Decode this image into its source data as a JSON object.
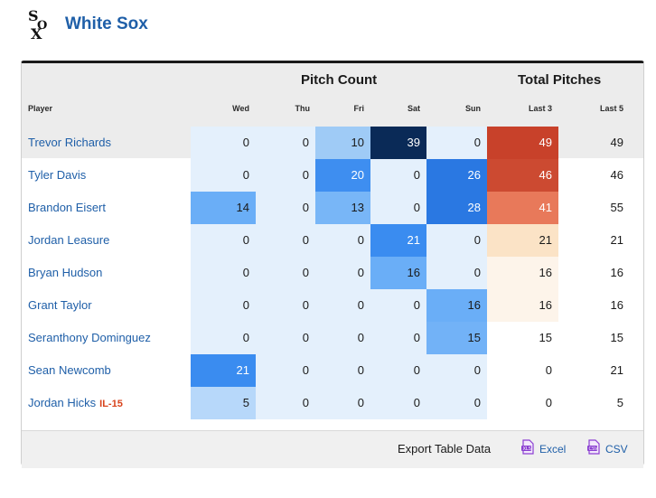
{
  "team": {
    "name": "White Sox",
    "logo_icon": "white-sox-logo-icon"
  },
  "table": {
    "group_headers": {
      "pitch_count": "Pitch Count",
      "total_pitches": "Total Pitches"
    },
    "columns": [
      "Player",
      "Wed",
      "Thu",
      "Fri",
      "Sat",
      "Sun",
      "Last 3",
      "Last 5"
    ],
    "rows": [
      {
        "player": "Trevor Richards",
        "badge": "",
        "values": [
          "0",
          "0",
          "10",
          "39",
          "0"
        ],
        "last3": "49",
        "last5": "49",
        "day_colors": [
          "#e4f0fc",
          "#e4f0fc",
          "#9fcbf6",
          "#0a2a57",
          "#e4f0fc"
        ],
        "day_text": [
          "#1a1a1a",
          "#1a1a1a",
          "#1a1a1a",
          "#ffffff",
          "#1a1a1a"
        ],
        "last3_color": "#c8412a",
        "last3_text": "#ffffff"
      },
      {
        "player": "Tyler Davis",
        "badge": "",
        "values": [
          "0",
          "0",
          "20",
          "0",
          "26"
        ],
        "last3": "46",
        "last5": "46",
        "day_colors": [
          "#e4f0fc",
          "#e4f0fc",
          "#3e8ef0",
          "#e4f0fc",
          "#2a78e2"
        ],
        "day_text": [
          "#1a1a1a",
          "#1a1a1a",
          "#ffffff",
          "#1a1a1a",
          "#ffffff"
        ],
        "last3_color": "#cc4a31",
        "last3_text": "#ffffff"
      },
      {
        "player": "Brandon Eisert",
        "badge": "",
        "values": [
          "14",
          "0",
          "13",
          "0",
          "28"
        ],
        "last3": "41",
        "last5": "55",
        "day_colors": [
          "#6aaef7",
          "#e4f0fc",
          "#78b6f7",
          "#e4f0fc",
          "#2a78e2"
        ],
        "day_text": [
          "#1a1a1a",
          "#1a1a1a",
          "#1a1a1a",
          "#1a1a1a",
          "#ffffff"
        ],
        "last3_color": "#e8795a",
        "last3_text": "#ffffff"
      },
      {
        "player": "Jordan Leasure",
        "badge": "",
        "values": [
          "0",
          "0",
          "0",
          "21",
          "0"
        ],
        "last3": "21",
        "last5": "21",
        "day_colors": [
          "#e4f0fc",
          "#e4f0fc",
          "#e4f0fc",
          "#3a8cf0",
          "#e4f0fc"
        ],
        "day_text": [
          "#1a1a1a",
          "#1a1a1a",
          "#1a1a1a",
          "#ffffff",
          "#1a1a1a"
        ],
        "last3_color": "#fbe3c6",
        "last3_text": "#1a1a1a"
      },
      {
        "player": "Bryan Hudson",
        "badge": "",
        "values": [
          "0",
          "0",
          "0",
          "16",
          "0"
        ],
        "last3": "16",
        "last5": "16",
        "day_colors": [
          "#e4f0fc",
          "#e4f0fc",
          "#e4f0fc",
          "#6aaef7",
          "#e4f0fc"
        ],
        "day_text": [
          "#1a1a1a",
          "#1a1a1a",
          "#1a1a1a",
          "#1a1a1a",
          "#1a1a1a"
        ],
        "last3_color": "#fdf4ea",
        "last3_text": "#1a1a1a"
      },
      {
        "player": "Grant Taylor",
        "badge": "",
        "values": [
          "0",
          "0",
          "0",
          "0",
          "16"
        ],
        "last3": "16",
        "last5": "16",
        "day_colors": [
          "#e4f0fc",
          "#e4f0fc",
          "#e4f0fc",
          "#e4f0fc",
          "#6aaef7"
        ],
        "day_text": [
          "#1a1a1a",
          "#1a1a1a",
          "#1a1a1a",
          "#1a1a1a",
          "#1a1a1a"
        ],
        "last3_color": "#fdf4ea",
        "last3_text": "#1a1a1a"
      },
      {
        "player": "Seranthony Dominguez",
        "badge": "",
        "values": [
          "0",
          "0",
          "0",
          "0",
          "15"
        ],
        "last3": "15",
        "last5": "15",
        "day_colors": [
          "#e4f0fc",
          "#e4f0fc",
          "#e4f0fc",
          "#e4f0fc",
          "#72b2f7"
        ],
        "day_text": [
          "#1a1a1a",
          "#1a1a1a",
          "#1a1a1a",
          "#1a1a1a",
          "#1a1a1a"
        ],
        "last3_color": "#ffffff",
        "last3_text": "#1a1a1a"
      },
      {
        "player": "Sean Newcomb",
        "badge": "",
        "values": [
          "21",
          "0",
          "0",
          "0",
          "0"
        ],
        "last3": "0",
        "last5": "21",
        "day_colors": [
          "#3a8cf0",
          "#e4f0fc",
          "#e4f0fc",
          "#e4f0fc",
          "#e4f0fc"
        ],
        "day_text": [
          "#ffffff",
          "#1a1a1a",
          "#1a1a1a",
          "#1a1a1a",
          "#1a1a1a"
        ],
        "last3_color": "#ffffff",
        "last3_text": "#1a1a1a"
      },
      {
        "player": "Jordan Hicks",
        "badge": "IL-15",
        "values": [
          "5",
          "0",
          "0",
          "0",
          "0"
        ],
        "last3": "0",
        "last5": "5",
        "day_colors": [
          "#b7d8fa",
          "#e4f0fc",
          "#e4f0fc",
          "#e4f0fc",
          "#e4f0fc"
        ],
        "day_text": [
          "#1a1a1a",
          "#1a1a1a",
          "#1a1a1a",
          "#1a1a1a",
          "#1a1a1a"
        ],
        "last3_color": "#ffffff",
        "last3_text": "#1a1a1a"
      }
    ]
  },
  "export": {
    "label": "Export Table Data",
    "excel": "Excel",
    "csv": "CSV",
    "excel_icon": "excel-file-icon",
    "csv_icon": "csv-file-icon"
  },
  "colors": {
    "team_blue": "#1f5fa8",
    "badge_red": "#d8431c",
    "header_gray": "#ececec",
    "icon_purple": "#8b3fd1"
  }
}
